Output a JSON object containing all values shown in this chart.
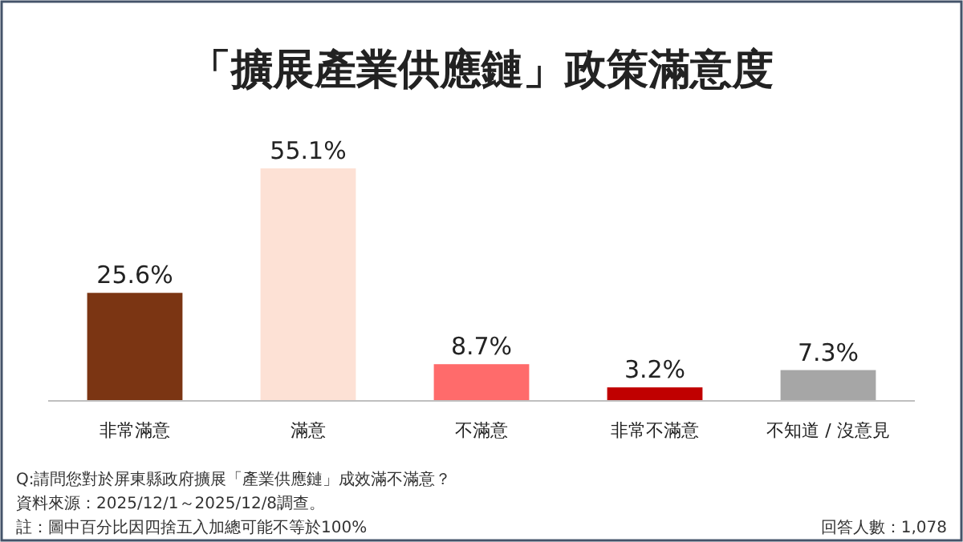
{
  "chart_data": {
    "type": "bar",
    "title": "「擴展產業供應鏈」政策滿意度",
    "categories": [
      "非常滿意",
      "滿意",
      "不滿意",
      "非常不滿意",
      "不知道 / 沒意見"
    ],
    "values": [
      25.6,
      55.1,
      8.7,
      3.2,
      7.3
    ],
    "colors": [
      "#7b3513",
      "#fde1d5",
      "#ff6b6b",
      "#c00000",
      "#a6a6a6"
    ],
    "value_labels": [
      "25.6%",
      "55.1%",
      "8.7%",
      "3.2%",
      "7.3%"
    ],
    "annotations": [
      "Q:請問您對於屏東縣政府擴展「產業供應鏈」成效滿不滿意？",
      "資料來源：2025/12/1～2025/12/8調查。",
      "註：圖中百分比因四捨五入加總可能不等於100%",
      "回答人數：1,078"
    ]
  }
}
